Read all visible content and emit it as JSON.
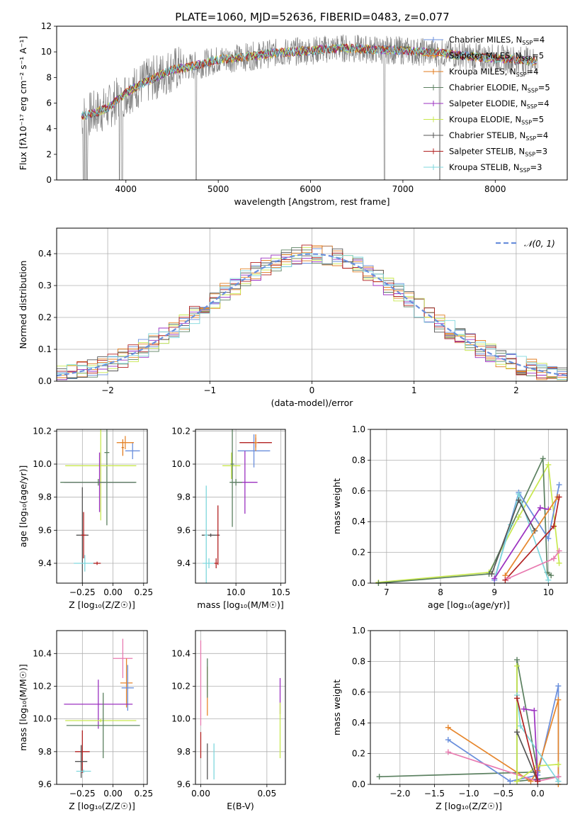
{
  "figure": {
    "title": "PLATE=1060, MJD=52636, FIBERID=0483, z=0.077"
  },
  "colors": {
    "s1": "#6a8fdc",
    "s2": "#e6862c",
    "s3": "#e07b1e",
    "s4": "#5b8060",
    "s5": "#9b30c0",
    "s6": "#c8e84e",
    "s7": "#555555",
    "s8": "#b22222",
    "s9": "#7fd7dd",
    "pink": "#e87ab0",
    "data": "#808080"
  },
  "chart_data": [
    {
      "id": "spectrum",
      "type": "line",
      "xlabel": "wavelength [Angstrom, rest frame]",
      "ylabel": "Flux [fλ10⁻¹⁷ erg cm⁻² s⁻¹ A⁻¹]",
      "xlim": [
        3250,
        8780
      ],
      "ylim": [
        0,
        12
      ],
      "xticks": [
        4000,
        5000,
        6000,
        7000,
        8000
      ],
      "yticks": [
        0,
        2,
        4,
        6,
        8,
        10,
        12
      ],
      "legend": [
        "Chabrier MILES, N_SSP=4",
        "Salpeter MILES, N_SSP=5",
        "Kroupa MILES, N_SSP=4",
        "Chabrier ELODIE, N_SSP=5",
        "Salpeter ELODIE, N_SSP=4",
        "Kroupa ELODIE, N_SSP=5",
        "Chabrier STELIB, N_SSP=4",
        "Salpeter STELIB, N_SSP=3",
        "Kroupa STELIB, N_SSP=3"
      ],
      "legend_placement": "right",
      "model_trend": {
        "x": [
          3550,
          3650,
          3800,
          4000,
          4200,
          4500,
          4800,
          5000,
          5300,
          5600,
          6000,
          6300,
          6600,
          7000,
          7400,
          7800,
          8200,
          8450
        ],
        "y": [
          5.0,
          5.2,
          5.6,
          6.8,
          7.6,
          8.6,
          9.0,
          9.4,
          9.6,
          9.9,
          10.1,
          10.3,
          10.2,
          10.1,
          9.9,
          9.6,
          9.4,
          9.3
        ]
      },
      "data_range": [
        3520,
        8460
      ],
      "absorption_dips": [
        3540,
        3560,
        3580,
        3930,
        3960,
        4760,
        6800,
        7400
      ]
    },
    {
      "id": "residuals",
      "type": "histogram",
      "xlabel": "(data-model)/error",
      "ylabel": "Normed distribution",
      "xlim": [
        -2.5,
        2.5
      ],
      "ylim": [
        0,
        0.48
      ],
      "xticks": [
        -2,
        -1,
        0,
        1,
        2
      ],
      "yticks": [
        0.0,
        0.1,
        0.2,
        0.3,
        0.4
      ],
      "legend": [
        "𝒩(0, 1)"
      ],
      "legend_placement": "top-right",
      "bin_width": 0.1
    },
    {
      "id": "age_Z",
      "type": "scatter",
      "xlabel": "Z [log₁₀(Z/Z☉)]",
      "ylabel": "age  [log₁₀(age/yr)]",
      "xlim": [
        -0.46,
        0.28
      ],
      "ylim": [
        9.28,
        10.21
      ],
      "xticks": [
        -0.25,
        0.0,
        0.25
      ],
      "yticks": [
        9.4,
        9.6,
        9.8,
        10.0,
        10.2
      ],
      "points": [
        {
          "c": "s1",
          "x": 0.16,
          "y": 10.08,
          "ex": 0.06,
          "ey": 0.05
        },
        {
          "c": "s2",
          "x": 0.1,
          "y": 10.13,
          "ex": 0.07,
          "ey": 0.04
        },
        {
          "c": "s3",
          "x": 0.08,
          "y": 10.1,
          "ex": 0.01,
          "ey": 0.05
        },
        {
          "c": "s4",
          "x": -0.05,
          "y": 10.07,
          "ex": 0.02,
          "ey": 0.44
        },
        {
          "c": "s6",
          "x": -0.1,
          "y": 9.99,
          "ex": 0.29,
          "ey": 0.33
        },
        {
          "c": "s5",
          "x": -0.11,
          "y": 9.89,
          "ex": 0.29,
          "ey": 0.18
        },
        {
          "c": "s4",
          "x": -0.12,
          "y": 9.89,
          "ex": 0.31,
          "ey": 0.02
        },
        {
          "c": "s7",
          "x": -0.25,
          "y": 9.57,
          "ex": 0.05,
          "ey": 0.29
        },
        {
          "c": "s8",
          "x": -0.24,
          "y": 9.57,
          "ex": 0.02,
          "ey": 0.14
        },
        {
          "c": "s9",
          "x": -0.23,
          "y": 9.4,
          "ex": 0.09,
          "ey": 0.05
        },
        {
          "c": "s8",
          "x": -0.13,
          "y": 9.4,
          "ex": 0.03,
          "ey": 0.01
        }
      ]
    },
    {
      "id": "age_mass",
      "type": "scatter",
      "xlabel": "mass [log₁₀(M/M☉)]",
      "ylabel": "",
      "xlim": [
        9.55,
        10.55
      ],
      "ylim": [
        9.28,
        10.21
      ],
      "xticks": [
        10.0,
        10.5
      ],
      "yticks": [
        9.4,
        9.6,
        9.8,
        10.0,
        10.2
      ],
      "points": [
        {
          "c": "s1",
          "x": 10.2,
          "y": 10.08,
          "ex": 0.18,
          "ey": 0.1
        },
        {
          "c": "s8",
          "x": 10.22,
          "y": 10.13,
          "ex": 0.18,
          "ey": 0.03
        },
        {
          "c": "s2",
          "x": 10.22,
          "y": 10.13,
          "ex": 0.02,
          "ey": 0.05
        },
        {
          "c": "s6",
          "x": 9.95,
          "y": 9.99,
          "ex": 0.1,
          "ey": 0.08
        },
        {
          "c": "s4",
          "x": 9.96,
          "y": 10.0,
          "ex": 0.02,
          "ey": 0.38
        },
        {
          "c": "s5",
          "x": 10.1,
          "y": 9.89,
          "ex": 0.14,
          "ey": 0.19
        },
        {
          "c": "s4",
          "x": 10.0,
          "y": 9.89,
          "ex": 0.07,
          "ey": 0.02
        },
        {
          "c": "s7",
          "x": 9.72,
          "y": 9.57,
          "ex": 0.1,
          "ey": 0.01
        },
        {
          "c": "s9",
          "x": 9.67,
          "y": 9.57,
          "ex": 0.02,
          "ey": 0.3
        },
        {
          "c": "s8",
          "x": 9.8,
          "y": 9.57,
          "ex": 0.01,
          "ey": 0.18
        },
        {
          "c": "s9",
          "x": 9.7,
          "y": 9.4,
          "ex": 0.07,
          "ey": 0.03
        },
        {
          "c": "s8",
          "x": 9.78,
          "y": 9.4,
          "ex": 0.02,
          "ey": 0.03
        }
      ]
    },
    {
      "id": "weight_age",
      "type": "line",
      "xlabel": "age  [log₁₀(age/yr)]",
      "ylabel": "mass weight",
      "xlim": [
        6.7,
        10.35
      ],
      "ylim": [
        0,
        1.0
      ],
      "xticks": [
        7,
        8,
        9,
        10
      ],
      "yticks": [
        0.0,
        0.2,
        0.4,
        0.6,
        0.8,
        1.0
      ],
      "series": [
        {
          "c": "s6",
          "x": [
            6.85,
            8.9,
            9.45,
            10.0,
            10.2
          ],
          "y": [
            0.005,
            0.07,
            0.43,
            0.77,
            0.13
          ]
        },
        {
          "c": "s4",
          "x": [
            6.85,
            8.9,
            9.9,
            9.98,
            10.05
          ],
          "y": [
            0.0,
            0.06,
            0.81,
            0.07,
            0.05
          ]
        },
        {
          "c": "s1",
          "x": [
            9.0,
            9.45,
            10.0,
            10.2
          ],
          "y": [
            0.02,
            0.59,
            0.29,
            0.64
          ]
        },
        {
          "c": "s9",
          "x": [
            9.0,
            9.3,
            9.45,
            10.0
          ],
          "y": [
            0.03,
            0.38,
            0.58,
            0.02
          ]
        },
        {
          "c": "s7",
          "x": [
            8.95,
            9.45,
            9.75
          ],
          "y": [
            0.06,
            0.54,
            0.34
          ]
        },
        {
          "c": "s5",
          "x": [
            9.0,
            9.85,
            10.0
          ],
          "y": [
            0.03,
            0.49,
            0.48
          ]
        },
        {
          "c": "s2",
          "x": [
            9.2,
            10.17
          ],
          "y": [
            0.05,
            0.56
          ]
        },
        {
          "c": "s8",
          "x": [
            9.2,
            10.1,
            10.2
          ],
          "y": [
            0.02,
            0.37,
            0.56
          ]
        },
        {
          "c": "pink",
          "x": [
            9.25,
            10.1,
            10.2
          ],
          "y": [
            0.03,
            0.16,
            0.21
          ]
        }
      ]
    },
    {
      "id": "mass_Z",
      "type": "scatter",
      "xlabel": "Z [log₁₀(Z/Z☉)]",
      "ylabel": "mass [log₁₀(M/M☉)]",
      "xlim": [
        -0.46,
        0.28
      ],
      "ylim": [
        9.6,
        10.54
      ],
      "xticks": [
        -0.25,
        0.0,
        0.25
      ],
      "yticks": [
        9.6,
        9.8,
        10.0,
        10.2,
        10.4
      ],
      "points": [
        {
          "c": "pink",
          "x": 0.08,
          "y": 10.37,
          "ex": 0.08,
          "ey": 0.12
        },
        {
          "c": "s2",
          "x": 0.11,
          "y": 10.22,
          "ex": 0.05,
          "ey": 0.15
        },
        {
          "c": "s1",
          "x": 0.12,
          "y": 10.19,
          "ex": 0.05,
          "ey": 0.14
        },
        {
          "c": "s5",
          "x": -0.12,
          "y": 10.09,
          "ex": 0.28,
          "ey": 0.15
        },
        {
          "c": "s6",
          "x": -0.1,
          "y": 9.99,
          "ex": 0.29,
          "ey": 0.01
        },
        {
          "c": "s4",
          "x": -0.08,
          "y": 9.96,
          "ex": 0.3,
          "ey": 0.2
        },
        {
          "c": "s8",
          "x": -0.25,
          "y": 9.8,
          "ex": 0.06,
          "ey": 0.13
        },
        {
          "c": "s7",
          "x": -0.26,
          "y": 9.74,
          "ex": 0.05,
          "ey": 0.1
        },
        {
          "c": "s9",
          "x": -0.24,
          "y": 9.68,
          "ex": 0.06,
          "ey": 0.01
        }
      ]
    },
    {
      "id": "mass_ebv",
      "type": "scatter",
      "xlabel": "E(B-V)",
      "ylabel": "",
      "xlim": [
        -0.004,
        0.064
      ],
      "ylim": [
        9.6,
        10.54
      ],
      "xticks": [
        0.0,
        0.05
      ],
      "yticks": [
        9.6,
        9.8,
        10.0,
        10.2,
        10.4
      ],
      "points": [
        {
          "c": "pink",
          "x": 0.0,
          "y": 10.22,
          "ex": 0,
          "ey": 0.26
        },
        {
          "c": "s2",
          "x": 0.005,
          "y": 10.17,
          "ex": 0,
          "ey": 0.15
        },
        {
          "c": "s4",
          "x": 0.005,
          "y": 10.25,
          "ex": 0,
          "ey": 0.12
        },
        {
          "c": "s8",
          "x": 0.0,
          "y": 9.84,
          "ex": 0,
          "ey": 0.08
        },
        {
          "c": "s7",
          "x": 0.005,
          "y": 9.74,
          "ex": 0,
          "ey": 0.11
        },
        {
          "c": "s9",
          "x": 0.01,
          "y": 9.74,
          "ex": 0,
          "ey": 0.11
        },
        {
          "c": "s5",
          "x": 0.06,
          "y": 10.14,
          "ex": 0,
          "ey": 0.11
        },
        {
          "c": "s6",
          "x": 0.06,
          "y": 9.93,
          "ex": 0,
          "ey": 0.17
        }
      ]
    },
    {
      "id": "weight_Z",
      "type": "line",
      "xlabel": "Z [log₁₀(Z/Z☉)]",
      "ylabel": "mass weight",
      "xlim": [
        -2.43,
        0.43
      ],
      "ylim": [
        0,
        1.0
      ],
      "xticks": [
        -2.0,
        -1.5,
        -1.0,
        -0.5,
        0.0
      ],
      "yticks": [
        0.0,
        0.2,
        0.4,
        0.6,
        0.8,
        1.0
      ],
      "series": [
        {
          "c": "s4",
          "x": [
            -2.3,
            0.0,
            -0.3,
            -0.3,
            0.3
          ],
          "y": [
            0.05,
            0.08,
            0.81,
            0.02,
            0.05
          ]
        },
        {
          "c": "s1",
          "x": [
            -1.3,
            -0.4,
            0.0,
            0.3,
            0.3
          ],
          "y": [
            0.29,
            0.02,
            0.06,
            0.64,
            0.02
          ]
        },
        {
          "c": "s2",
          "x": [
            -1.3,
            -0.1,
            0.0,
            0.3,
            0.3
          ],
          "y": [
            0.37,
            0.02,
            0.09,
            0.55,
            0.0
          ]
        },
        {
          "c": "pink",
          "x": [
            -1.3,
            0.0,
            0.3
          ],
          "y": [
            0.21,
            0.02,
            0.05
          ]
        },
        {
          "c": "s6",
          "x": [
            -0.3,
            -0.3,
            0.0,
            0.3
          ],
          "y": [
            0.77,
            0.02,
            0.12,
            0.13
          ]
        },
        {
          "c": "s9",
          "x": [
            -0.3,
            -0.25,
            0.3
          ],
          "y": [
            0.58,
            0.38,
            0.02
          ]
        },
        {
          "c": "s7",
          "x": [
            -0.3,
            0.0
          ],
          "y": [
            0.34,
            0.02
          ]
        },
        {
          "c": "s5",
          "x": [
            -0.2,
            -0.05,
            0.0
          ],
          "y": [
            0.49,
            0.48,
            0.03
          ]
        },
        {
          "c": "s8",
          "x": [
            -0.3,
            0.0
          ],
          "y": [
            0.56,
            0.02
          ]
        }
      ]
    }
  ]
}
